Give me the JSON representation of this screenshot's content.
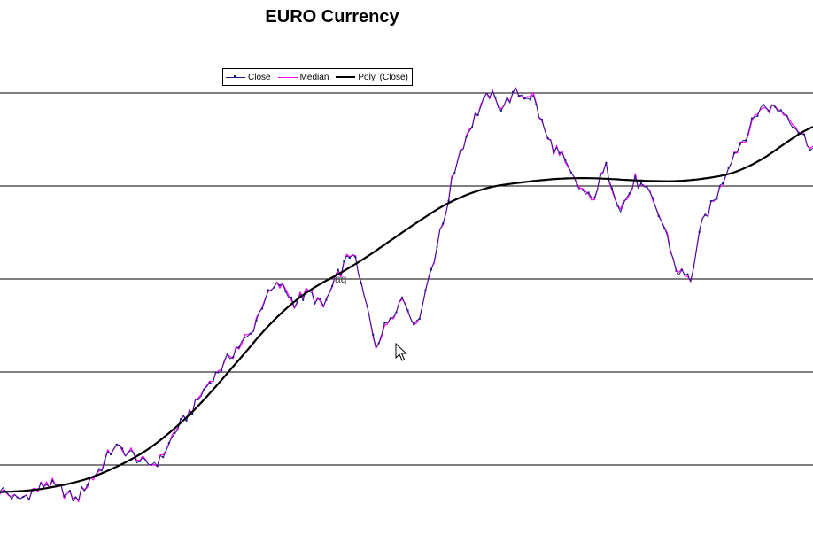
{
  "chart_data": {
    "type": "line",
    "title": "EURO Currency",
    "xlabel": "",
    "ylabel": "",
    "grid": "horizontal",
    "legend_position": "top",
    "ylim": [
      0,
      6
    ],
    "gridlines_y": [
      1,
      2,
      3,
      4,
      5
    ],
    "x_count": 280,
    "series": [
      {
        "name": "Close",
        "color": "#1a1a7a",
        "markers": true
      },
      {
        "name": "Median",
        "color": "#ff00ff",
        "markers": false
      },
      {
        "name": "Poly. (Close)",
        "color": "#000000",
        "trendline": true
      }
    ],
    "close_keypoints": [
      [
        0,
        0.75
      ],
      [
        6,
        0.62
      ],
      [
        12,
        0.72
      ],
      [
        16,
        0.8
      ],
      [
        22,
        0.72
      ],
      [
        26,
        0.62
      ],
      [
        31,
        0.85
      ],
      [
        35,
        0.98
      ],
      [
        39,
        1.2
      ],
      [
        45,
        1.12
      ],
      [
        50,
        1.0
      ],
      [
        55,
        1.05
      ],
      [
        61,
        1.4
      ],
      [
        66,
        1.6
      ],
      [
        71,
        1.85
      ],
      [
        76,
        2.05
      ],
      [
        81,
        2.25
      ],
      [
        86,
        2.4
      ],
      [
        91,
        2.8
      ],
      [
        96,
        2.95
      ],
      [
        101,
        2.75
      ],
      [
        106,
        2.85
      ],
      [
        111,
        2.7
      ],
      [
        116,
        3.05
      ],
      [
        121,
        3.3
      ],
      [
        125,
        2.8
      ],
      [
        129,
        2.3
      ],
      [
        134,
        2.6
      ],
      [
        138,
        2.8
      ],
      [
        143,
        2.5
      ],
      [
        147,
        3.0
      ],
      [
        152,
        3.6
      ],
      [
        157,
        4.3
      ],
      [
        163,
        4.75
      ],
      [
        168,
        5.0
      ],
      [
        172,
        4.85
      ],
      [
        177,
        5.0
      ],
      [
        183,
        4.95
      ],
      [
        188,
        4.5
      ],
      [
        193,
        4.3
      ],
      [
        198,
        4.0
      ],
      [
        203,
        3.85
      ],
      [
        208,
        4.2
      ],
      [
        213,
        3.75
      ],
      [
        218,
        4.05
      ],
      [
        223,
        3.9
      ],
      [
        228,
        3.55
      ],
      [
        232,
        3.1
      ],
      [
        237,
        3.0
      ],
      [
        241,
        3.6
      ],
      [
        246,
        3.9
      ],
      [
        251,
        4.3
      ],
      [
        256,
        4.55
      ],
      [
        261,
        4.85
      ],
      [
        265,
        4.85
      ],
      [
        269,
        4.8
      ],
      [
        274,
        4.6
      ],
      [
        279,
        4.4
      ]
    ],
    "poly_keypoints": [
      [
        0,
        0.7
      ],
      [
        20,
        0.75
      ],
      [
        40,
        0.95
      ],
      [
        60,
        1.35
      ],
      [
        80,
        2.05
      ],
      [
        100,
        2.8
      ],
      [
        120,
        3.1
      ],
      [
        140,
        3.55
      ],
      [
        160,
        3.95
      ],
      [
        180,
        4.05
      ],
      [
        200,
        4.1
      ],
      [
        220,
        4.05
      ],
      [
        240,
        4.05
      ],
      [
        260,
        4.2
      ],
      [
        280,
        4.75
      ]
    ]
  },
  "annotations": {
    "stray_text": "aq"
  }
}
